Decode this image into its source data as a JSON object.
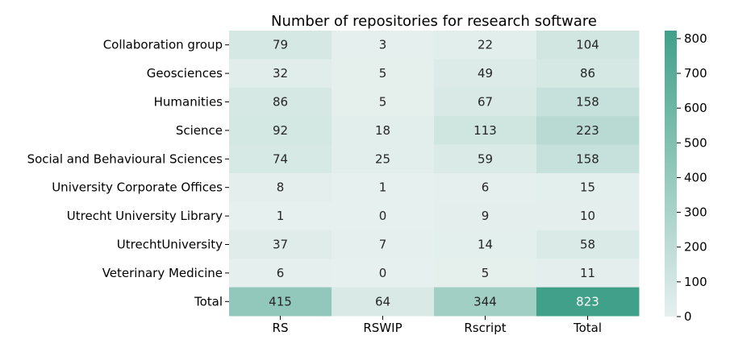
{
  "chart_data": {
    "type": "heatmap",
    "title": "Number of repositories for research software",
    "rows": [
      "Collaboration group",
      "Geosciences",
      "Humanities",
      "Science",
      "Social and Behavioural Sciences",
      "University Corporate Offices",
      "Utrecht University Library",
      "UtrechtUniversity",
      "Veterinary Medicine",
      "Total"
    ],
    "columns": [
      "RS",
      "RSWIP",
      "Rscript",
      "Total"
    ],
    "values": [
      [
        79,
        3,
        22,
        104
      ],
      [
        32,
        5,
        49,
        86
      ],
      [
        86,
        5,
        67,
        158
      ],
      [
        92,
        18,
        113,
        223
      ],
      [
        74,
        25,
        59,
        158
      ],
      [
        8,
        1,
        6,
        15
      ],
      [
        1,
        0,
        9,
        10
      ],
      [
        37,
        7,
        14,
        58
      ],
      [
        6,
        0,
        5,
        11
      ],
      [
        415,
        64,
        344,
        823
      ]
    ],
    "colorbar": {
      "min": 0,
      "max": 823,
      "ticks": [
        0,
        100,
        200,
        300,
        400,
        500,
        600,
        700,
        800
      ],
      "color_low": "#e6f0ee",
      "color_high": "#40a08a"
    }
  }
}
